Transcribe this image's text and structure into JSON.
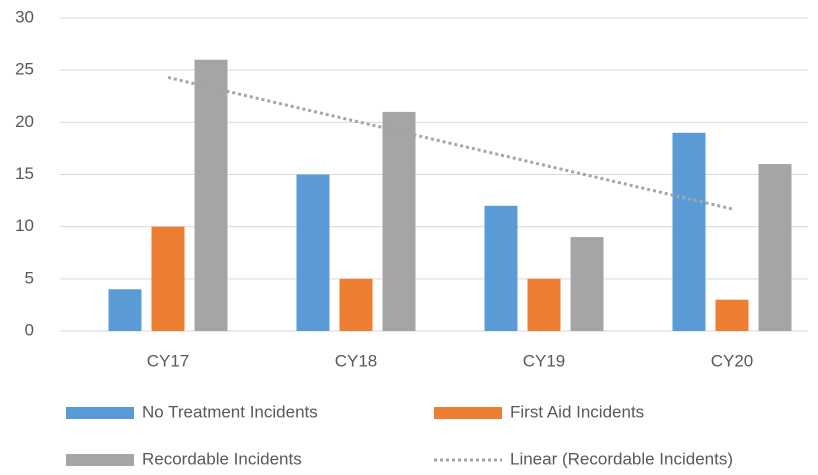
{
  "chart_data": {
    "type": "bar",
    "categories": [
      "CY17",
      "CY18",
      "CY19",
      "CY20"
    ],
    "series": [
      {
        "name": "No Treatment Incidents",
        "color": "#5b9bd5",
        "values": [
          4,
          15,
          12,
          19
        ]
      },
      {
        "name": "First Aid Incidents",
        "color": "#ed7d31",
        "values": [
          10,
          5,
          5,
          3
        ]
      },
      {
        "name": "Recordable Incidents",
        "color": "#a5a5a5",
        "values": [
          26,
          21,
          9,
          16
        ]
      },
      {
        "name": "Linear (Recordable Incidents)",
        "color": "#a5a5a5",
        "type": "line",
        "dashed": true,
        "values": [
          24.3,
          20.1,
          15.9,
          11.7
        ]
      }
    ],
    "ylim": [
      0,
      30
    ],
    "yticks": [
      0,
      5,
      10,
      15,
      20,
      25,
      30
    ],
    "grid": true,
    "legend": "bottom"
  }
}
